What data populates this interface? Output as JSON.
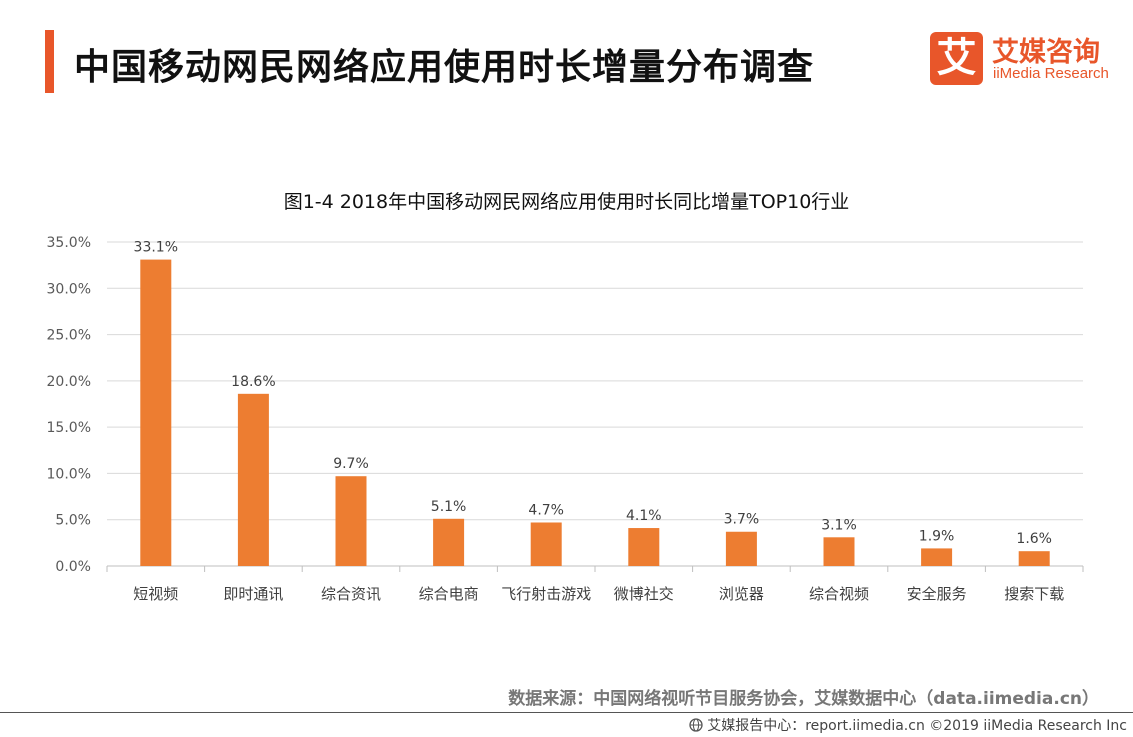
{
  "page": {
    "title": "中国移动网民网络应用使用时长增量分布调查"
  },
  "logo": {
    "mark": "艾",
    "name_cn": "艾媒咨询",
    "name_en": "iiMedia Research"
  },
  "colors": {
    "accent": "#e8562a",
    "bar": "#ed7d31",
    "grid": "#d9d9d9"
  },
  "chart_data": {
    "type": "bar",
    "title": "图1-4 2018年中国移动网民网络应用使用时长同比增量TOP10行业",
    "categories": [
      "短视频",
      "即时通讯",
      "综合资讯",
      "综合电商",
      "飞行射击游戏",
      "微博社交",
      "浏览器",
      "综合视频",
      "安全服务",
      "搜索下载"
    ],
    "values": [
      33.1,
      18.6,
      9.7,
      5.1,
      4.7,
      4.1,
      3.7,
      3.1,
      1.9,
      1.6
    ],
    "value_labels": [
      "33.1%",
      "18.6%",
      "9.7%",
      "5.1%",
      "4.7%",
      "4.1%",
      "3.7%",
      "3.1%",
      "1.9%",
      "1.6%"
    ],
    "y_ticks": [
      "0.0%",
      "5.0%",
      "10.0%",
      "15.0%",
      "20.0%",
      "25.0%",
      "30.0%",
      "35.0%"
    ],
    "ylim": [
      0,
      35
    ],
    "grid": true,
    "xlabel": "",
    "ylabel": ""
  },
  "source": "数据来源：中国网络视听节目服务协会，艾媒数据中心（data.iimedia.cn）",
  "footer": {
    "text": "艾媒报告中心：report.iimedia.cn  ©2019  iiMedia Research  Inc",
    "icon": "globe-icon"
  }
}
